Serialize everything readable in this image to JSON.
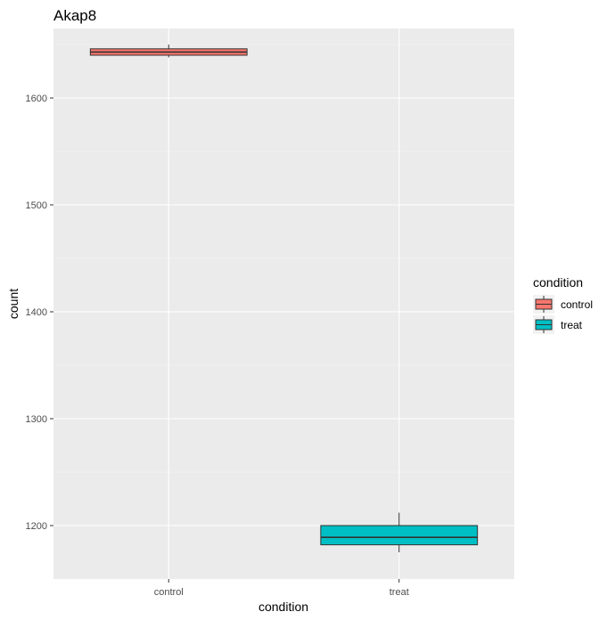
{
  "chart_data": {
    "type": "box",
    "title": "Akap8",
    "xlabel": "condition",
    "ylabel": "count",
    "categories": [
      "control",
      "treat"
    ],
    "ylim": [
      1150,
      1665
    ],
    "yticks": [
      1200,
      1300,
      1400,
      1500,
      1600
    ],
    "boxes": [
      {
        "category": "control",
        "min": 1638,
        "q1": 1640,
        "median": 1643,
        "q3": 1646,
        "max": 1650
      },
      {
        "category": "treat",
        "min": 1175,
        "q1": 1182,
        "median": 1189,
        "q3": 1200,
        "max": 1212
      }
    ],
    "grid": true,
    "legend": {
      "title": "condition",
      "position": "right",
      "entries": [
        "control",
        "treat"
      ]
    },
    "colors": {
      "control": "#f8766d",
      "treat": "#00bfc4",
      "panel": "#ebebeb",
      "grid_major": "#ffffff",
      "grid_minor": "#f5f5f5"
    }
  }
}
